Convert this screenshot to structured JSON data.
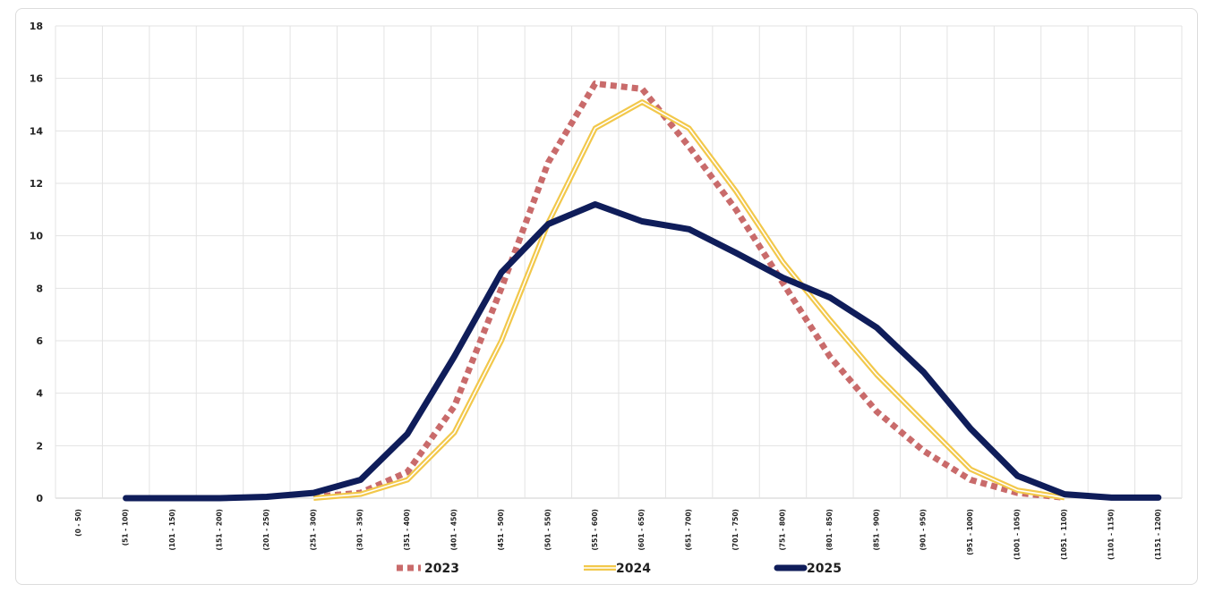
{
  "chart_data": {
    "type": "line",
    "title": "",
    "xlabel": "",
    "ylabel": "",
    "ylim": [
      0,
      18
    ],
    "yticks": [
      0,
      2,
      4,
      6,
      8,
      10,
      12,
      14,
      16,
      18
    ],
    "grid": true,
    "legend_position": "bottom",
    "categories": [
      "(0 - 50)",
      "(51 - 100)",
      "(101 - 150)",
      "(151 - 200)",
      "(201 - 250)",
      "(251 - 300)",
      "(301 - 350)",
      "(351 - 400)",
      "(401 - 450)",
      "(451 - 500)",
      "(501 - 550)",
      "(551 - 600)",
      "(601 - 650)",
      "(651 - 700)",
      "(701 - 750)",
      "(751 - 800)",
      "(801 - 850)",
      "(851 - 900)",
      "(901 - 950)",
      "(951 - 1000)",
      "(1001 - 1050)",
      "(1051 - 1100)",
      "(1101 - 1150)",
      "(1151 - 1200)"
    ],
    "series": [
      {
        "name": "2023",
        "color": "#c96b6b",
        "style": "dotted",
        "values": [
          null,
          null,
          null,
          null,
          null,
          0.05,
          0.2,
          1.0,
          3.5,
          8.0,
          12.8,
          15.8,
          15.6,
          13.4,
          11.0,
          8.2,
          5.4,
          3.3,
          1.8,
          0.7,
          0.2,
          0.02,
          null,
          null
        ]
      },
      {
        "name": "2024",
        "color": "#f2c84b",
        "style": "double",
        "values": [
          null,
          null,
          null,
          null,
          null,
          0.0,
          0.15,
          0.7,
          2.5,
          6.0,
          10.5,
          14.1,
          15.1,
          14.1,
          11.7,
          9.0,
          6.8,
          4.7,
          2.9,
          1.1,
          0.3,
          0.02,
          null,
          null
        ]
      },
      {
        "name": "2025",
        "color": "#0f1d5a",
        "style": "solid",
        "values": [
          null,
          0.0,
          0.0,
          0.0,
          0.05,
          0.2,
          0.7,
          2.45,
          5.4,
          8.6,
          10.45,
          11.2,
          10.55,
          10.25,
          9.35,
          8.4,
          7.65,
          6.5,
          4.8,
          2.65,
          0.85,
          0.15,
          0.02,
          0.02
        ]
      }
    ]
  }
}
